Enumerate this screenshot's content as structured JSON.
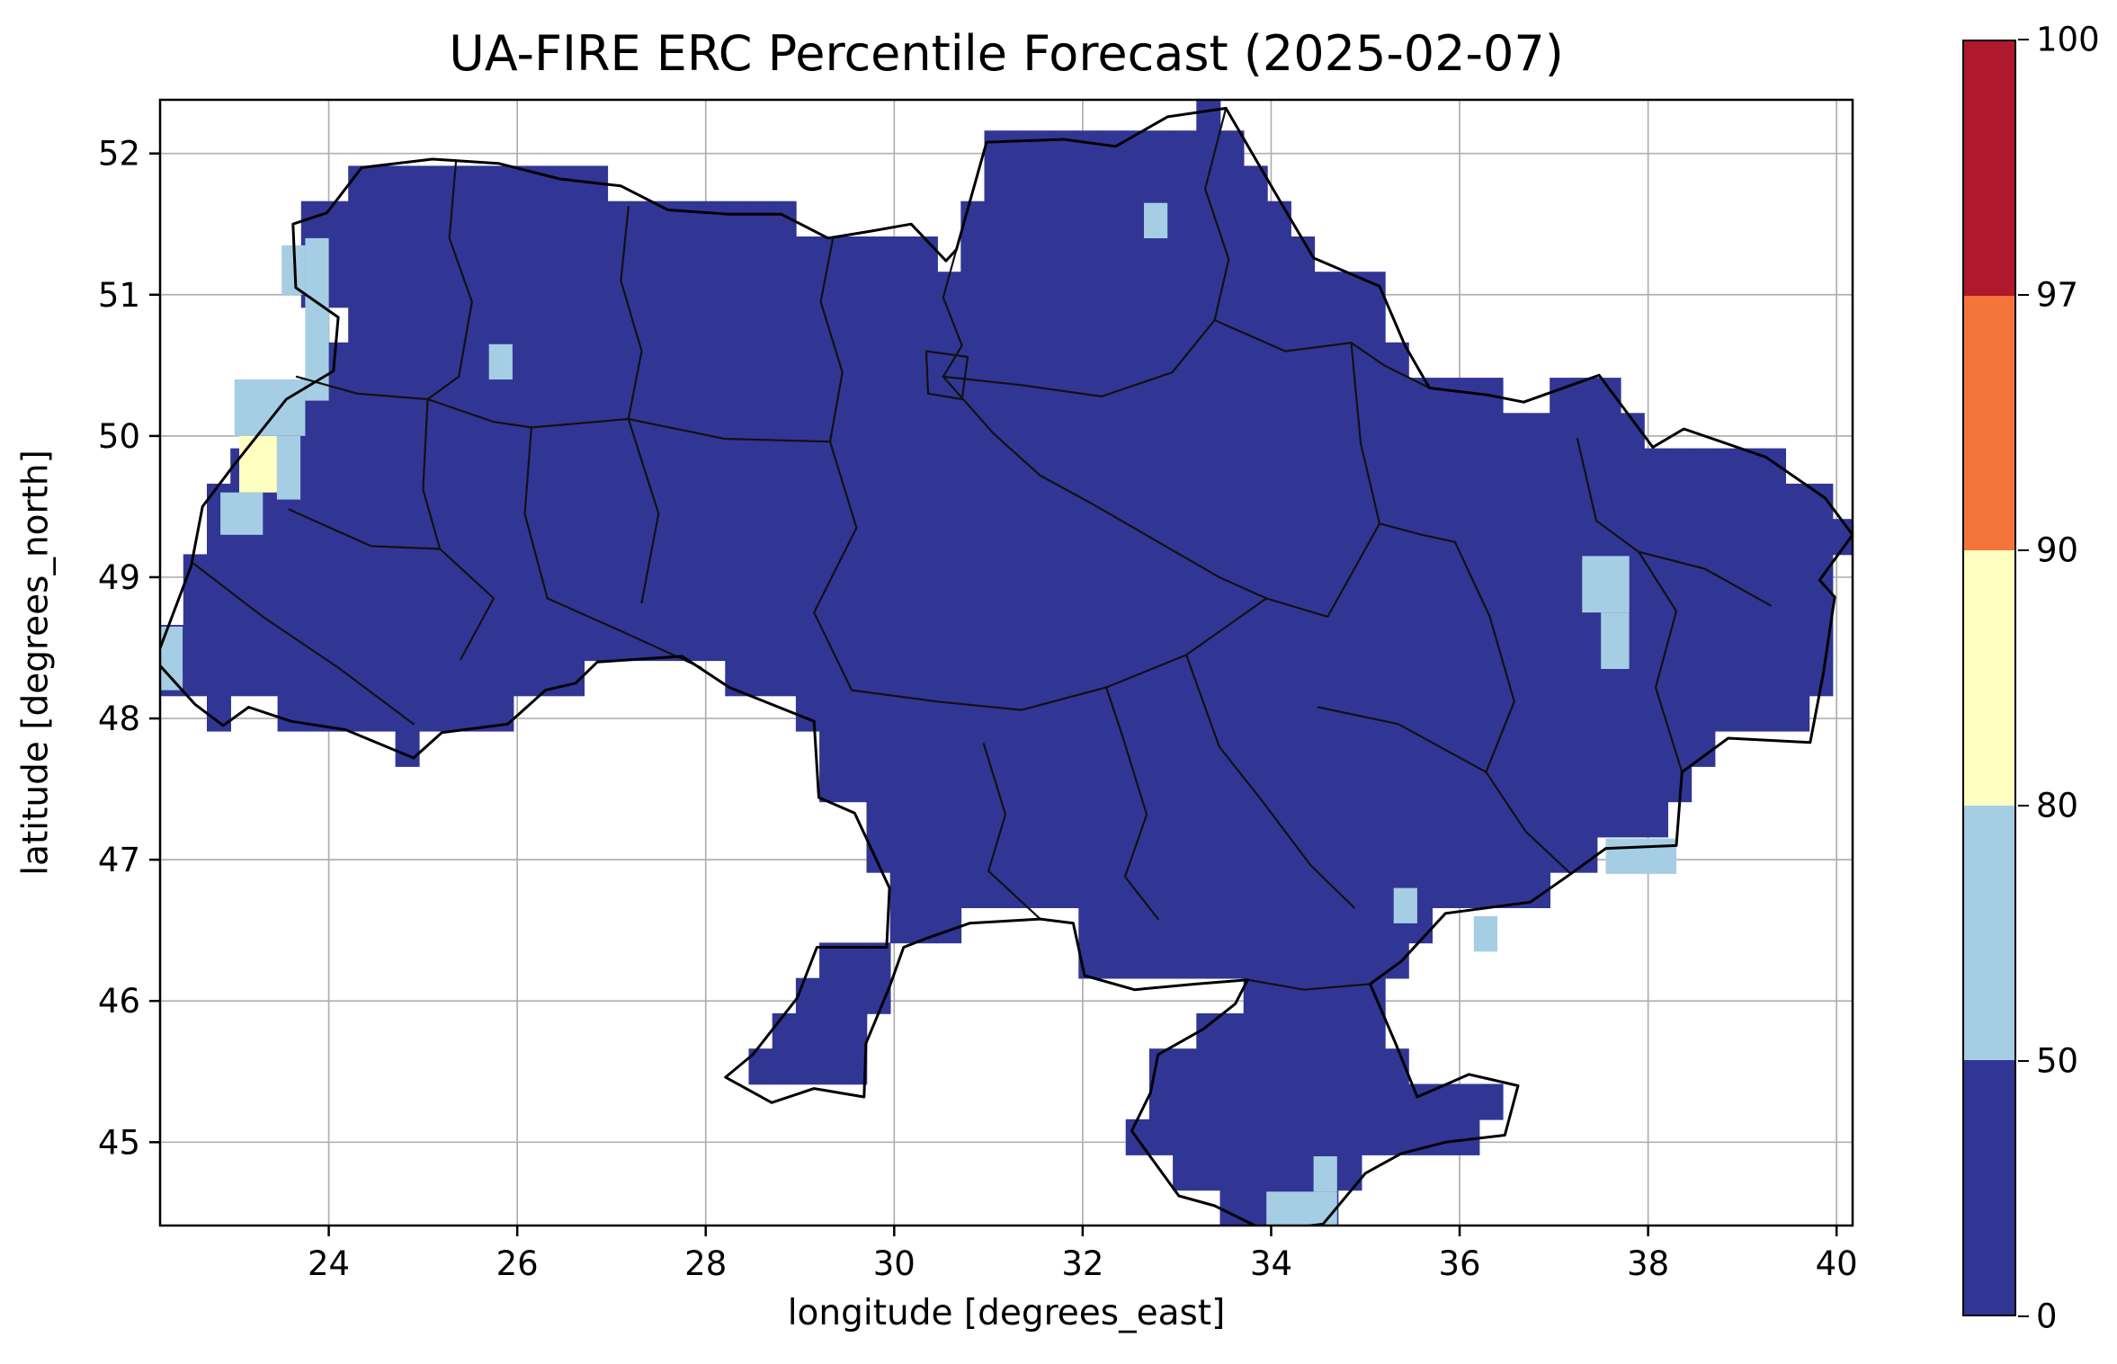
{
  "figure": {
    "background": "#ffffff"
  },
  "chart_data": {
    "type": "heatmap",
    "title": "UA-FIRE ERC Percentile Forecast (2025-02-07)",
    "xlabel": "longitude [degrees_east]",
    "ylabel": "latitude [degrees_north]",
    "x_ticks": [
      24,
      26,
      28,
      30,
      32,
      34,
      36,
      38,
      40
    ],
    "y_ticks": [
      45,
      46,
      47,
      48,
      49,
      50,
      51,
      52
    ],
    "xlim": [
      22.21,
      40.17
    ],
    "ylim": [
      44.41,
      52.38
    ],
    "grid": true,
    "grid_color": "#b0b0b0",
    "cell_deg": 0.25,
    "country": "Ukraine",
    "dominant_range": "0-50",
    "colorbar": {
      "levels": [
        0,
        50,
        80,
        90,
        97,
        100
      ],
      "colors_bottom_to_top": [
        "#313695",
        "#a5cee4",
        "#feffc0",
        "#f4743a",
        "#b0182d"
      ],
      "tick_labels_top_to_bottom": [
        "100",
        "97",
        "90",
        "80",
        "50",
        "0"
      ]
    },
    "outline": [
      [
        23.62,
        51.5
      ],
      [
        23.98,
        51.58
      ],
      [
        24.35,
        51.9
      ],
      [
        25.1,
        51.96
      ],
      [
        25.8,
        51.93
      ],
      [
        26.45,
        51.82
      ],
      [
        27.1,
        51.77
      ],
      [
        27.6,
        51.6
      ],
      [
        28.25,
        51.57
      ],
      [
        28.8,
        51.57
      ],
      [
        29.3,
        51.4
      ],
      [
        29.75,
        51.45
      ],
      [
        30.18,
        51.5
      ],
      [
        30.55,
        51.24
      ],
      [
        30.66,
        51.32
      ],
      [
        30.98,
        52.08
      ],
      [
        31.8,
        52.1
      ],
      [
        32.35,
        52.05
      ],
      [
        32.9,
        52.26
      ],
      [
        33.52,
        52.32
      ],
      [
        34.08,
        51.68
      ],
      [
        34.45,
        51.26
      ],
      [
        35.15,
        51.06
      ],
      [
        35.42,
        50.64
      ],
      [
        35.68,
        50.34
      ],
      [
        36.3,
        50.29
      ],
      [
        36.68,
        50.24
      ],
      [
        37.48,
        50.43
      ],
      [
        38.05,
        49.92
      ],
      [
        38.38,
        50.05
      ],
      [
        39.25,
        49.85
      ],
      [
        39.88,
        49.56
      ],
      [
        40.17,
        49.3
      ],
      [
        39.82,
        48.98
      ],
      [
        39.98,
        48.86
      ],
      [
        39.86,
        48.32
      ],
      [
        39.72,
        47.83
      ],
      [
        38.85,
        47.86
      ],
      [
        38.36,
        47.62
      ],
      [
        38.3,
        47.1
      ],
      [
        37.55,
        47.08
      ],
      [
        37.18,
        46.9
      ],
      [
        36.75,
        46.7
      ],
      [
        35.85,
        46.62
      ],
      [
        35.38,
        46.28
      ],
      [
        35.05,
        46.12
      ],
      [
        35.32,
        45.7
      ],
      [
        35.55,
        45.32
      ],
      [
        36.1,
        45.48
      ],
      [
        36.62,
        45.4
      ],
      [
        36.48,
        45.05
      ],
      [
        35.85,
        45.0
      ],
      [
        35.38,
        44.92
      ],
      [
        35.0,
        44.78
      ],
      [
        34.55,
        44.42
      ],
      [
        33.95,
        44.37
      ],
      [
        33.4,
        44.55
      ],
      [
        33.02,
        44.62
      ],
      [
        32.52,
        45.08
      ],
      [
        32.72,
        45.35
      ],
      [
        32.8,
        45.62
      ],
      [
        33.28,
        45.8
      ],
      [
        33.62,
        45.98
      ],
      [
        33.75,
        46.15
      ],
      [
        33.2,
        46.12
      ],
      [
        32.55,
        46.08
      ],
      [
        32.02,
        46.18
      ],
      [
        31.9,
        46.55
      ],
      [
        31.55,
        46.58
      ],
      [
        30.8,
        46.55
      ],
      [
        30.33,
        46.44
      ],
      [
        30.1,
        46.38
      ],
      [
        29.95,
        46.1
      ],
      [
        29.7,
        45.7
      ],
      [
        29.68,
        45.32
      ],
      [
        29.15,
        45.38
      ],
      [
        28.7,
        45.28
      ],
      [
        28.21,
        45.46
      ],
      [
        28.5,
        45.62
      ],
      [
        28.97,
        46.02
      ],
      [
        29.18,
        46.38
      ],
      [
        29.92,
        46.38
      ],
      [
        29.95,
        46.8
      ],
      [
        29.58,
        47.33
      ],
      [
        29.2,
        47.44
      ],
      [
        29.15,
        47.98
      ],
      [
        28.25,
        48.22
      ],
      [
        27.75,
        48.44
      ],
      [
        26.85,
        48.4
      ],
      [
        26.62,
        48.25
      ],
      [
        26.3,
        48.2
      ],
      [
        25.9,
        47.96
      ],
      [
        25.2,
        47.9
      ],
      [
        24.9,
        47.72
      ],
      [
        24.18,
        47.92
      ],
      [
        23.6,
        47.98
      ],
      [
        23.15,
        48.08
      ],
      [
        22.88,
        47.95
      ],
      [
        22.58,
        48.1
      ],
      [
        22.16,
        48.41
      ],
      [
        22.54,
        49.08
      ],
      [
        22.66,
        49.5
      ],
      [
        23.0,
        49.8
      ],
      [
        23.55,
        50.26
      ],
      [
        24.05,
        50.46
      ],
      [
        24.1,
        50.84
      ],
      [
        23.65,
        51.05
      ]
    ],
    "admin_boundaries": [
      [
        [
          25.35,
          51.94
        ],
        [
          25.28,
          51.4
        ],
        [
          25.52,
          50.95
        ],
        [
          25.38,
          50.42
        ],
        [
          25.05,
          50.26
        ]
      ],
      [
        [
          23.66,
          50.42
        ],
        [
          24.3,
          50.3
        ],
        [
          25.05,
          50.26
        ],
        [
          25.75,
          50.1
        ],
        [
          26.15,
          50.06
        ]
      ],
      [
        [
          27.18,
          51.62
        ],
        [
          27.1,
          51.1
        ],
        [
          27.32,
          50.6
        ],
        [
          27.18,
          50.12
        ]
      ],
      [
        [
          29.35,
          51.4
        ],
        [
          29.22,
          50.95
        ],
        [
          29.45,
          50.45
        ],
        [
          29.32,
          49.96
        ]
      ],
      [
        [
          30.66,
          51.32
        ],
        [
          30.52,
          50.98
        ],
        [
          30.72,
          50.64
        ],
        [
          30.52,
          50.42
        ]
      ],
      [
        [
          33.52,
          52.32
        ],
        [
          33.3,
          51.75
        ],
        [
          33.55,
          51.25
        ],
        [
          33.4,
          50.82
        ]
      ],
      [
        [
          30.52,
          50.42
        ],
        [
          31.35,
          50.36
        ],
        [
          32.2,
          50.28
        ],
        [
          32.95,
          50.45
        ],
        [
          33.4,
          50.82
        ]
      ],
      [
        [
          26.15,
          50.06
        ],
        [
          27.18,
          50.12
        ],
        [
          28.2,
          49.98
        ],
        [
          29.32,
          49.96
        ]
      ],
      [
        [
          25.05,
          50.26
        ],
        [
          25.0,
          49.62
        ],
        [
          25.18,
          49.2
        ]
      ],
      [
        [
          26.15,
          50.06
        ],
        [
          26.08,
          49.45
        ],
        [
          26.32,
          48.85
        ]
      ],
      [
        [
          27.18,
          50.12
        ],
        [
          27.5,
          49.45
        ],
        [
          27.32,
          48.82
        ]
      ],
      [
        [
          22.56,
          49.1
        ],
        [
          23.3,
          48.72
        ],
        [
          24.1,
          48.36
        ],
        [
          24.9,
          47.96
        ]
      ],
      [
        [
          23.58,
          49.48
        ],
        [
          24.45,
          49.22
        ],
        [
          25.18,
          49.2
        ]
      ],
      [
        [
          25.18,
          49.2
        ],
        [
          25.75,
          48.85
        ],
        [
          25.4,
          48.42
        ]
      ],
      [
        [
          26.32,
          48.85
        ],
        [
          27.1,
          48.62
        ],
        [
          27.95,
          48.36
        ]
      ],
      [
        [
          29.32,
          49.96
        ],
        [
          29.6,
          49.35
        ],
        [
          29.15,
          48.75
        ],
        [
          29.55,
          48.2
        ]
      ],
      [
        [
          30.52,
          50.42
        ],
        [
          31.05,
          50.02
        ],
        [
          31.55,
          49.72
        ],
        [
          32.1,
          49.52
        ],
        [
          32.8,
          49.25
        ],
        [
          33.45,
          49.0
        ],
        [
          33.95,
          48.85
        ]
      ],
      [
        [
          33.4,
          50.82
        ],
        [
          34.15,
          50.6
        ],
        [
          34.85,
          50.66
        ]
      ],
      [
        [
          34.85,
          50.66
        ],
        [
          34.95,
          49.95
        ],
        [
          35.15,
          49.38
        ]
      ],
      [
        [
          33.95,
          48.85
        ],
        [
          34.6,
          48.72
        ],
        [
          35.15,
          49.38
        ]
      ],
      [
        [
          29.55,
          48.2
        ],
        [
          30.45,
          48.12
        ],
        [
          31.35,
          48.06
        ],
        [
          32.25,
          48.22
        ]
      ],
      [
        [
          32.25,
          48.22
        ],
        [
          33.1,
          48.45
        ],
        [
          33.95,
          48.85
        ]
      ],
      [
        [
          37.25,
          49.98
        ],
        [
          37.45,
          49.4
        ],
        [
          37.9,
          49.18
        ],
        [
          38.3,
          48.76
        ],
        [
          38.08,
          48.22
        ],
        [
          38.36,
          47.62
        ]
      ],
      [
        [
          35.95,
          49.25
        ],
        [
          36.32,
          48.72
        ],
        [
          36.58,
          48.12
        ],
        [
          36.28,
          47.62
        ]
      ],
      [
        [
          34.5,
          48.08
        ],
        [
          35.35,
          47.96
        ],
        [
          36.28,
          47.62
        ]
      ],
      [
        [
          33.9,
          47.42
        ],
        [
          34.42,
          46.96
        ],
        [
          34.88,
          46.66
        ]
      ],
      [
        [
          32.42,
          47.88
        ],
        [
          32.68,
          47.32
        ],
        [
          32.45,
          46.88
        ],
        [
          32.8,
          46.58
        ]
      ],
      [
        [
          30.95,
          47.82
        ],
        [
          31.18,
          47.32
        ],
        [
          31.0,
          46.92
        ],
        [
          31.55,
          46.58
        ]
      ],
      [
        [
          33.75,
          46.15
        ],
        [
          34.35,
          46.08
        ],
        [
          35.05,
          46.12
        ]
      ],
      [
        [
          30.34,
          50.6
        ],
        [
          30.78,
          50.56
        ],
        [
          30.72,
          50.26
        ],
        [
          30.36,
          50.3
        ],
        [
          30.34,
          50.6
        ]
      ],
      [
        [
          36.28,
          47.62
        ],
        [
          36.7,
          47.2
        ],
        [
          37.18,
          46.9
        ]
      ],
      [
        [
          32.25,
          48.22
        ],
        [
          32.42,
          47.88
        ]
      ],
      [
        [
          37.9,
          49.18
        ],
        [
          38.6,
          49.06
        ],
        [
          39.3,
          48.8
        ]
      ],
      [
        [
          33.9,
          47.42
        ],
        [
          33.45,
          47.8
        ],
        [
          33.1,
          48.45
        ]
      ],
      [
        [
          35.15,
          49.38
        ],
        [
          35.6,
          49.3
        ],
        [
          35.95,
          49.25
        ]
      ],
      [
        [
          34.85,
          50.66
        ],
        [
          35.2,
          50.5
        ],
        [
          35.68,
          50.34
        ]
      ]
    ],
    "anomaly_cells": [
      {
        "lon0": 23.75,
        "lat0": 50.25,
        "lon1": 24.0,
        "lat1": 51.4,
        "range": "50-80"
      },
      {
        "lon0": 23.5,
        "lat0": 51.0,
        "lon1": 23.75,
        "lat1": 51.35,
        "range": "50-80"
      },
      {
        "lon0": 23.0,
        "lat0": 50.0,
        "lon1": 23.75,
        "lat1": 50.4,
        "range": "50-80"
      },
      {
        "lon0": 23.45,
        "lat0": 49.55,
        "lon1": 23.7,
        "lat1": 50.0,
        "range": "50-80"
      },
      {
        "lon0": 22.85,
        "lat0": 49.3,
        "lon1": 23.3,
        "lat1": 49.6,
        "range": "50-80"
      },
      {
        "lon0": 22.21,
        "lat0": 48.2,
        "lon1": 22.45,
        "lat1": 48.65,
        "range": "50-80"
      },
      {
        "lon0": 23.05,
        "lat0": 49.6,
        "lon1": 23.45,
        "lat1": 50.0,
        "range": "80-90"
      },
      {
        "lon0": 25.7,
        "lat0": 50.4,
        "lon1": 25.95,
        "lat1": 50.65,
        "range": "50-80"
      },
      {
        "lon0": 32.65,
        "lat0": 51.4,
        "lon1": 32.9,
        "lat1": 51.65,
        "range": "50-80"
      },
      {
        "lon0": 37.3,
        "lat0": 48.75,
        "lon1": 37.8,
        "lat1": 49.15,
        "range": "50-80"
      },
      {
        "lon0": 37.5,
        "lat0": 48.35,
        "lon1": 37.8,
        "lat1": 48.75,
        "range": "50-80"
      },
      {
        "lon0": 37.55,
        "lat0": 46.9,
        "lon1": 38.3,
        "lat1": 47.15,
        "range": "50-80"
      },
      {
        "lon0": 35.3,
        "lat0": 46.55,
        "lon1": 35.55,
        "lat1": 46.8,
        "range": "50-80"
      },
      {
        "lon0": 36.15,
        "lat0": 46.35,
        "lon1": 36.4,
        "lat1": 46.6,
        "range": "50-80"
      },
      {
        "lon0": 33.95,
        "lat0": 44.4,
        "lon1": 34.7,
        "lat1": 44.65,
        "range": "50-80"
      },
      {
        "lon0": 34.45,
        "lat0": 44.65,
        "lon1": 34.7,
        "lat1": 44.9,
        "range": "50-80"
      }
    ]
  }
}
